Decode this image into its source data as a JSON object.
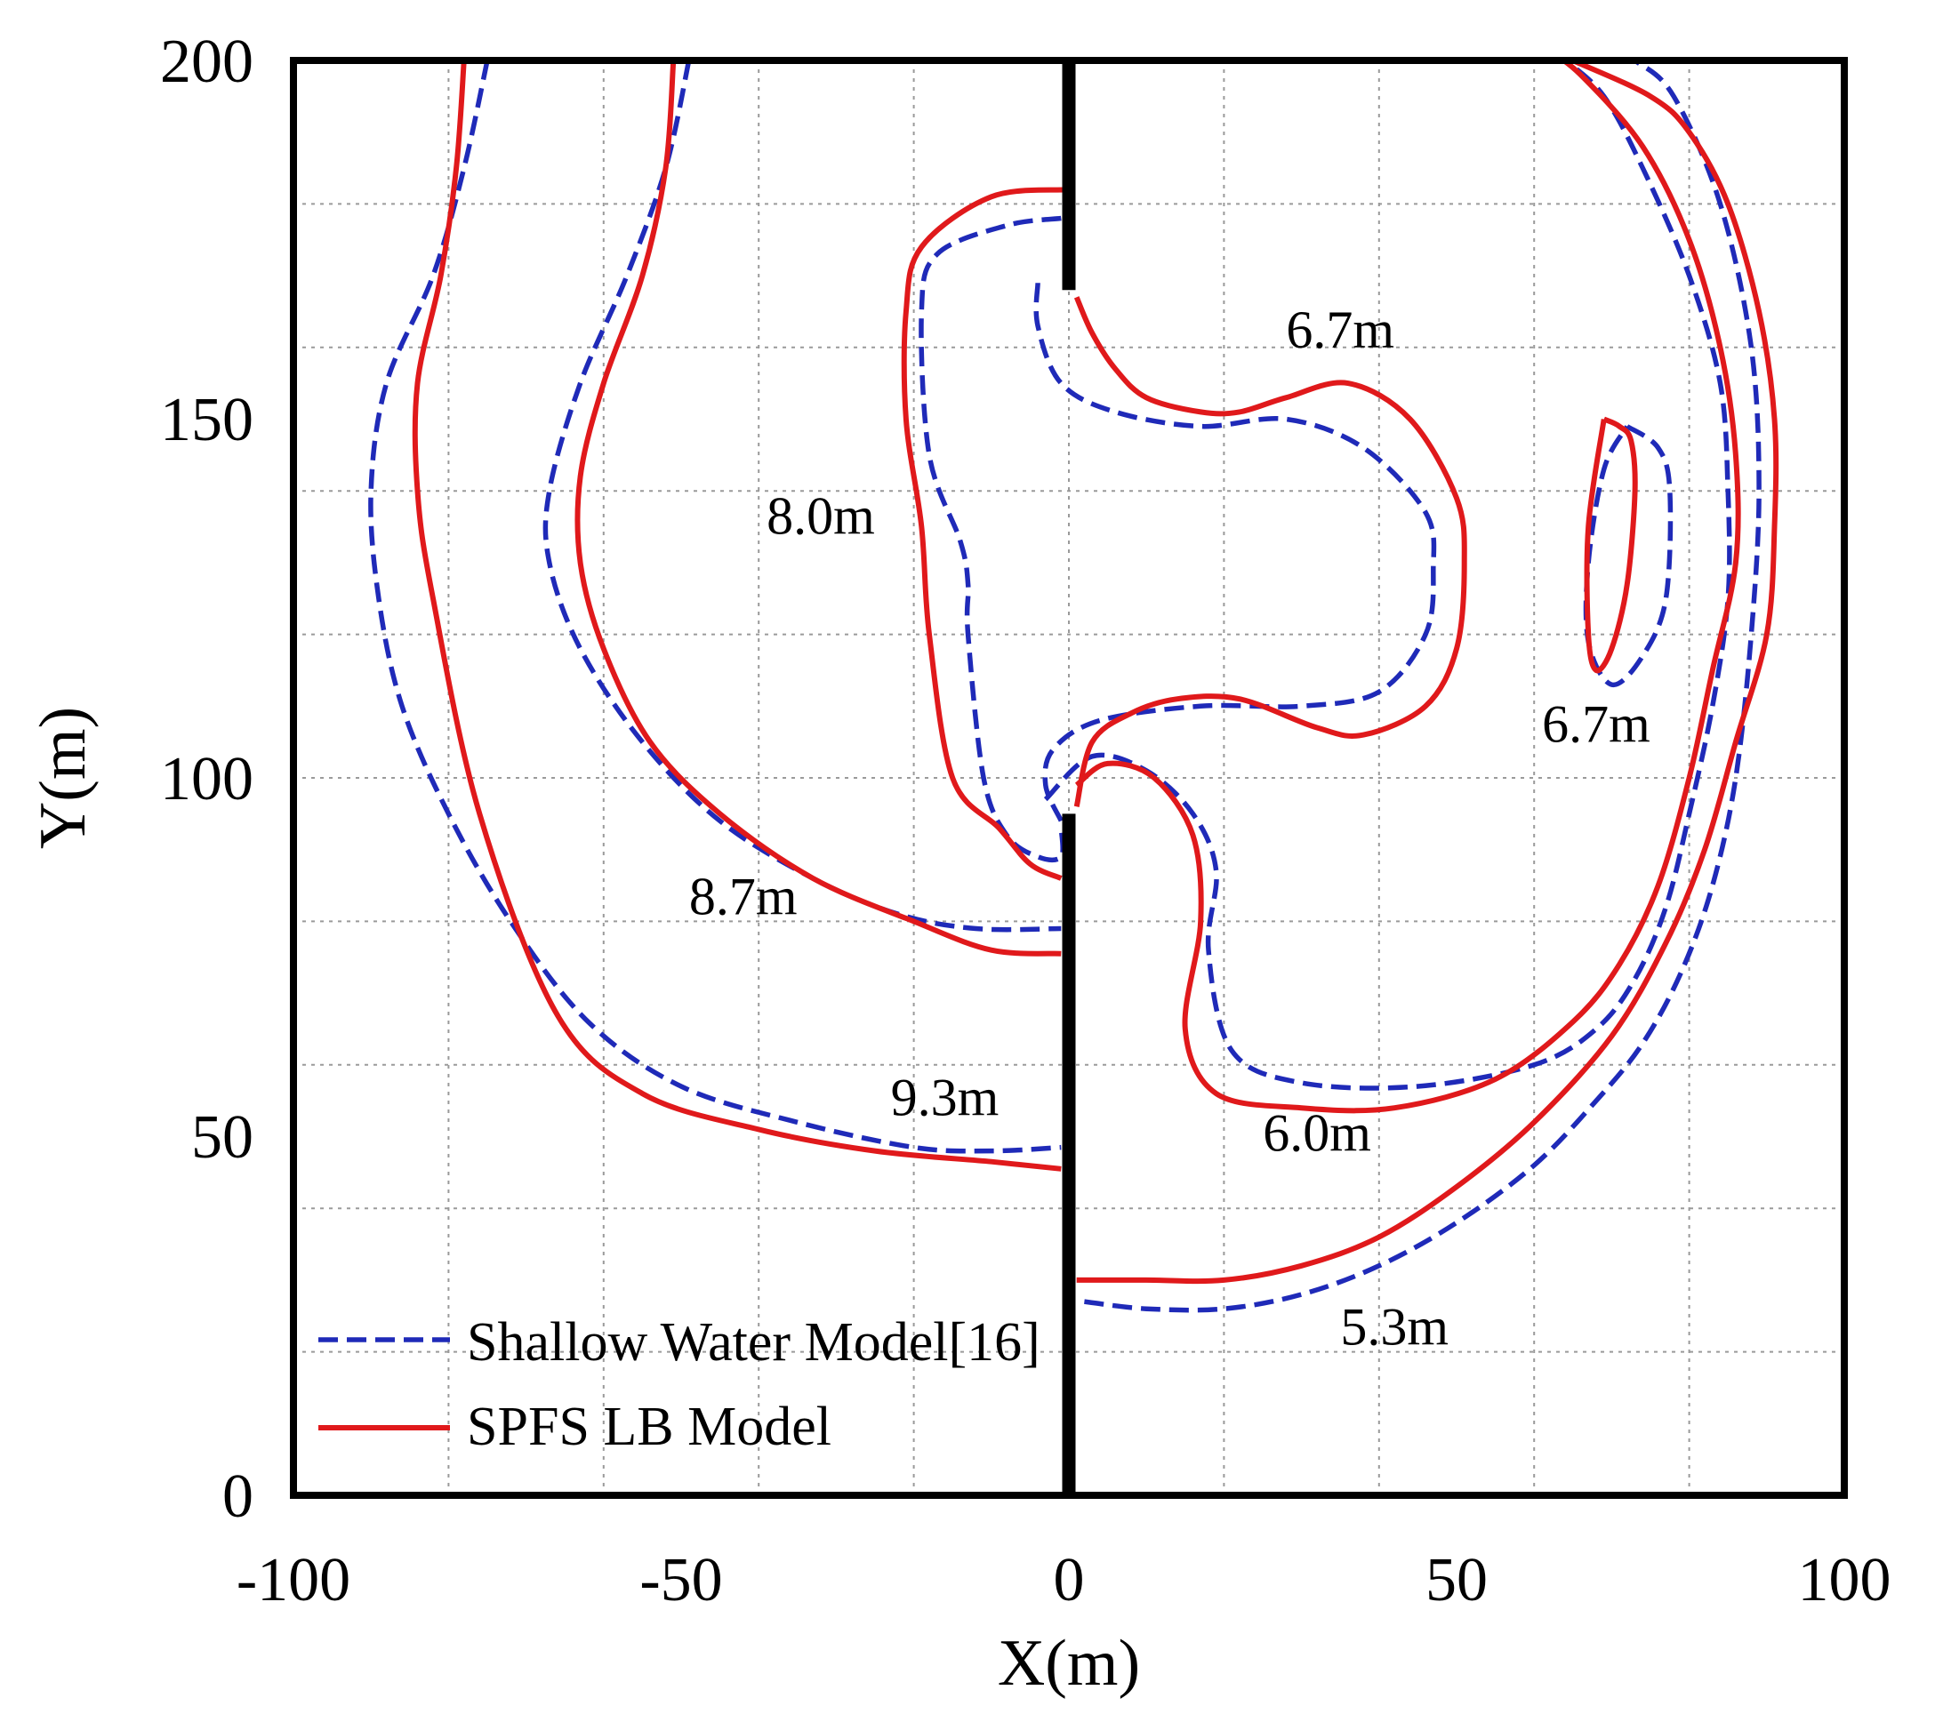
{
  "chart_data": {
    "type": "line",
    "subtype": "contour",
    "xlabel": "X(m)",
    "ylabel": "Y(m)",
    "xlim": [
      -100,
      100
    ],
    "ylim": [
      0,
      200
    ],
    "xticks": [
      "-100",
      "-50",
      "0",
      "50",
      "100"
    ],
    "yticks": [
      "0",
      "50",
      "100",
      "150",
      "200"
    ],
    "grid": true,
    "legend_placement": "bottom-left",
    "legend": [
      {
        "label": "Shallow Water Model[16]",
        "style": "dashed",
        "color": "#1f2ab8"
      },
      {
        "label": "SPFS LB Model",
        "style": "solid",
        "color": "#e0191b"
      }
    ],
    "barriers": [
      {
        "x": [
          0,
          0
        ],
        "y": [
          0,
          95
        ]
      },
      {
        "x": [
          0,
          0
        ],
        "y": [
          168,
          200
        ]
      }
    ],
    "annotations": [
      {
        "text": "6.7m",
        "x": 35,
        "y": 160
      },
      {
        "text": "8.0m",
        "x": -32,
        "y": 134
      },
      {
        "text": "6.7m",
        "x": 68,
        "y": 105
      },
      {
        "text": "8.7m",
        "x": -42,
        "y": 81
      },
      {
        "text": "9.3m",
        "x": -16,
        "y": 53
      },
      {
        "text": "6.0m",
        "x": 32,
        "y": 48
      },
      {
        "text": "5.3m",
        "x": 42,
        "y": 21
      }
    ],
    "series": [
      {
        "name": "Shallow Water Model[16]",
        "style": "dashed",
        "color": "#1f2ab8",
        "contours": [
          {
            "level": "8.7m",
            "x": [
              -75,
              -78,
              -82,
              -88,
              -90,
              -89,
              -86,
              -80,
              -72,
              -62,
              -50,
              -35,
              -20,
              -10,
              -1
            ],
            "y": [
              200,
              185,
              170,
              155,
              140,
              125,
              110,
              95,
              80,
              66,
              57,
              52,
              48.5,
              48,
              48.5
            ]
          },
          {
            "level": "8.7m",
            "x": [
              -49,
              -52,
              -57,
              -63,
              -67,
              -67,
              -63,
              -55,
              -45,
              -33,
              -22,
              -12,
              -1
            ],
            "y": [
              200,
              185,
              170,
              155,
              140,
              130,
              118,
              105,
              94,
              86,
              81,
              79,
              79
            ]
          },
          {
            "level": "8.0m",
            "x": [
              -1,
              -8,
              -17,
              -19,
              -18,
              -14,
              -13,
              -13,
              -11,
              -8,
              -4,
              -1,
              -1
            ],
            "y": [
              178,
              177,
              173,
              165,
              145,
              133,
              127,
              120,
              100,
              92,
              89,
              89,
              93
            ]
          },
          {
            "level": "6.7m",
            "x": [
              -4,
              -4,
              -1,
              6,
              17,
              28,
              38,
              46,
              47,
              46,
              40,
              30,
              17,
              4,
              -2,
              -3,
              -1
            ],
            "y": [
              169,
              163,
              155,
              151,
              149,
              150,
              146,
              137,
              129,
              120,
              112,
              110,
              110,
              108,
              104,
              99,
              94
            ]
          },
          {
            "level": "6.0m",
            "x": [
              -3,
              3,
              10,
              16,
              19,
              18,
              21,
              30,
              45,
              60,
              68,
              73,
              77,
              80,
              83,
              85,
              85,
              84,
              80,
              74,
              69,
              64,
              61
            ],
            "y": [
              97,
              103,
              101,
              95,
              87,
              76,
              62,
              57.5,
              57,
              60,
              65,
              72,
              82,
              95,
              110,
              125,
              140,
              155,
              170,
              185,
              195,
              200,
              202
            ]
          },
          {
            "level": "5.3m",
            "x": [
              2,
              10,
              20,
              30,
              40,
              50,
              60,
              68,
              74,
              79,
              83,
              86,
              88,
              89,
              88,
              84,
              78,
              73,
              68
            ],
            "y": [
              27,
              26,
              26,
              28,
              32,
              38,
              46,
              55,
              63,
              73,
              85,
              100,
              120,
              140,
              160,
              180,
              195,
              200,
              203
            ]
          },
          {
            "level": "6.7m-island",
            "x": [
              72,
              76,
              77.5,
              77,
              74,
              70,
              67,
              67,
              69,
              72
            ],
            "y": [
              149,
              146,
              140,
              125,
              117,
              113,
              119,
              130,
              143,
              149
            ]
          }
        ]
      },
      {
        "name": "SPFS LB Model",
        "style": "solid",
        "color": "#e0191b",
        "contours": [
          {
            "level": "8.7m",
            "x": [
              -78,
              -79,
              -81,
              -84,
              -84,
              -82,
              -76,
              -66,
              -55,
              -40,
              -25,
              -10,
              -1
            ],
            "y": [
              200,
              185,
              170,
              155,
              140,
              125,
              95,
              67,
              56,
              51,
              48,
              46.5,
              45.5
            ]
          },
          {
            "level": "8.7m",
            "x": [
              -51,
              -52,
              -55,
              -60,
              -63,
              -63,
              -60,
              -54,
              -45,
              -33,
              -20,
              -10,
              -1
            ],
            "y": [
              200,
              185,
              170,
              155,
              142,
              130,
              118,
              105,
              95,
              86,
              80,
              76,
              75.5
            ]
          },
          {
            "level": "8.0m",
            "x": [
              0,
              -10,
              -19,
              -21,
              -21,
              -19,
              -18,
              -15,
              -9,
              -5,
              -1
            ],
            "y": [
              182,
              181,
              174,
              165,
              150,
              135,
              120,
              100,
              93,
              88,
              86
            ]
          },
          {
            "level": "6.7m",
            "x": [
              1,
              3,
              6,
              10,
              17,
              22,
              28,
              36,
              44,
              50,
              51,
              50,
              46,
              38,
              32,
              22,
              14,
              8,
              3,
              1
            ],
            "y": [
              167,
              162,
              157,
              153,
              151,
              151,
              153,
              155,
              150,
              139,
              130,
              118,
              110,
              106,
              107,
              111,
              111,
              109,
              105,
              96
            ]
          },
          {
            "level": "6.0m",
            "x": [
              1,
              5,
              11,
              16,
              17,
              15,
              19,
              30,
              42,
              55,
              65,
              71,
              76,
              80,
              83,
              86,
              86,
              84,
              80,
              74,
              66,
              61
            ],
            "y": [
              99,
              102,
              100,
              92,
              80,
              65,
              56,
              54,
              54,
              58,
              66,
              74,
              85,
              100,
              115,
              130,
              145,
              160,
              175,
              188,
              198,
              202
            ]
          },
          {
            "level": "5.3m",
            "x": [
              1,
              10,
              20,
              30,
              40,
              50,
              60,
              70,
              77,
              82,
              86,
              90,
              91,
              91,
              89,
              85,
              80,
              75,
              65,
              61
            ],
            "y": [
              30,
              30,
              30,
              32,
              36,
              43,
              52,
              64,
              77,
              90,
              105,
              120,
              135,
              150,
              165,
              180,
              190,
              195,
              200,
              202
            ]
          },
          {
            "level": "6.7m-island",
            "x": [
              69,
              71,
              72.5,
              73,
              72,
              70,
              68,
              67,
              67,
              69
            ],
            "y": [
              150,
              149,
              147,
              140,
              127,
              118,
              115,
              120,
              135,
              150
            ]
          }
        ]
      }
    ]
  }
}
